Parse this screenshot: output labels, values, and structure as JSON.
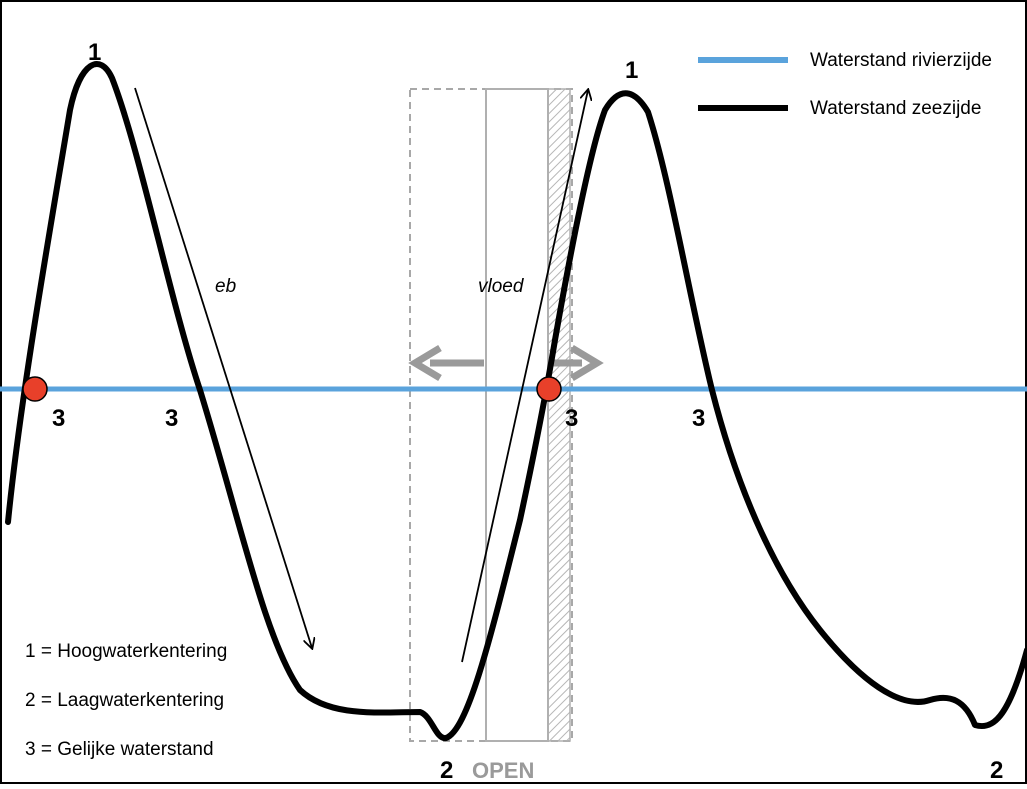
{
  "legend": {
    "river": {
      "label": "Waterstand rivierzijde",
      "color": "#5aa3dc"
    },
    "sea": {
      "label": "Waterstand zeezijde",
      "color": "#000000"
    }
  },
  "curve_labels": {
    "high_left": "1",
    "high_right": "1",
    "low_center": "2",
    "low_right": "2",
    "eq_1": "3",
    "eq_2": "3",
    "eq_3": "3",
    "eq_4": "3"
  },
  "arrows": {
    "ebb": "eb",
    "flood": "vloed"
  },
  "gate": {
    "label": "OPEN",
    "frame_color": "#9a9a9a",
    "arrow_color": "#9a9a9a"
  },
  "marker_color": "#e8402a",
  "key": {
    "item1": "1 = Hoogwaterkentering",
    "item2": "2 = Laagwaterkentering",
    "item3": "3 = Gelijke waterstand"
  }
}
